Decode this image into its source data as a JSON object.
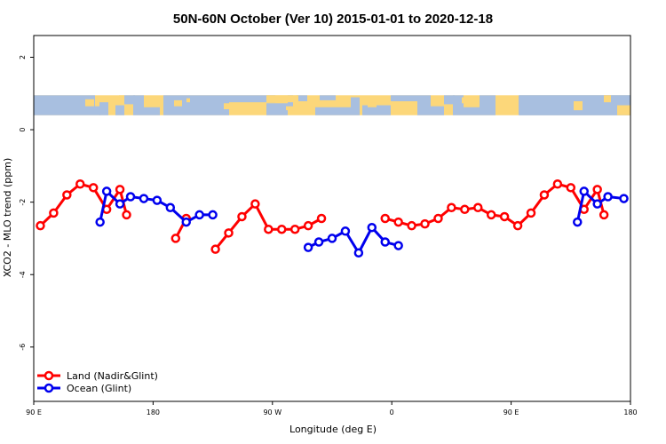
{
  "chart_data": {
    "type": "line",
    "title": "50N-60N October (Ver 10)   2015-01-01 to 2020-12-18",
    "xlabel": "Longitude (deg E)",
    "ylabel": "XCO2 - MLO trend (ppm)",
    "xlim": [
      90,
      540
    ],
    "ylim": [
      -7.5,
      2.6
    ],
    "x_ticks": [
      {
        "value": 90,
        "label": "90 E"
      },
      {
        "value": 180,
        "label": "180"
      },
      {
        "value": 270,
        "label": "90 W"
      },
      {
        "value": 360,
        "label": "0"
      },
      {
        "value": 450,
        "label": "90 E"
      },
      {
        "value": 540,
        "label": "180"
      }
    ],
    "y_ticks": [
      {
        "value": 2,
        "label": "2"
      },
      {
        "value": 0,
        "label": "0"
      },
      {
        "value": -2,
        "label": "-2"
      },
      {
        "value": -4,
        "label": "-4"
      },
      {
        "value": -6,
        "label": "-6"
      }
    ],
    "map_strip": {
      "y_top": 0.95,
      "y_bottom": 0.4,
      "ocean_color": "#a8bfe0",
      "land_color": "#fcd77a"
    },
    "legend_position": "bottom-left",
    "series": [
      {
        "name": "Land (Nadir&Glint)",
        "color": "#ff0000",
        "segments": [
          [
            [
              95,
              -2.65
            ],
            [
              105,
              -2.3
            ],
            [
              115,
              -1.8
            ],
            [
              125,
              -1.5
            ],
            [
              135,
              -1.6
            ],
            [
              145,
              -2.2
            ],
            [
              155,
              -1.65
            ],
            [
              160,
              -2.35
            ]
          ],
          [
            [
              197,
              -3.0
            ],
            [
              205,
              -2.45
            ]
          ],
          [
            [
              227,
              -3.3
            ],
            [
              237,
              -2.85
            ],
            [
              247,
              -2.4
            ],
            [
              257,
              -2.05
            ],
            [
              267,
              -2.75
            ],
            [
              277,
              -2.75
            ],
            [
              287,
              -2.75
            ],
            [
              297,
              -2.65
            ],
            [
              307,
              -2.45
            ]
          ],
          [
            [
              355,
              -2.45
            ],
            [
              365,
              -2.55
            ],
            [
              375,
              -2.65
            ],
            [
              385,
              -2.6
            ],
            [
              395,
              -2.45
            ],
            [
              405,
              -2.15
            ],
            [
              415,
              -2.2
            ],
            [
              425,
              -2.15
            ],
            [
              435,
              -2.35
            ],
            [
              445,
              -2.4
            ],
            [
              455,
              -2.65
            ],
            [
              465,
              -2.3
            ],
            [
              475,
              -1.8
            ],
            [
              485,
              -1.5
            ],
            [
              495,
              -1.6
            ],
            [
              505,
              -2.2
            ],
            [
              515,
              -1.65
            ],
            [
              520,
              -2.35
            ]
          ]
        ]
      },
      {
        "name": "Ocean (Glint)",
        "color": "#0000ee",
        "segments": [
          [
            [
              140,
              -2.55
            ],
            [
              145,
              -1.7
            ],
            [
              155,
              -2.05
            ],
            [
              163,
              -1.85
            ],
            [
              173,
              -1.9
            ],
            [
              183,
              -1.95
            ],
            [
              193,
              -2.15
            ],
            [
              205,
              -2.55
            ],
            [
              215,
              -2.35
            ],
            [
              225,
              -2.35
            ]
          ],
          [
            [
              297,
              -3.25
            ],
            [
              305,
              -3.1
            ],
            [
              315,
              -3.0
            ],
            [
              325,
              -2.8
            ],
            [
              335,
              -3.4
            ],
            [
              345,
              -2.7
            ],
            [
              355,
              -3.1
            ],
            [
              365,
              -3.2
            ]
          ],
          [
            [
              500,
              -2.55
            ],
            [
              505,
              -1.7
            ],
            [
              515,
              -2.05
            ],
            [
              523,
              -1.85
            ],
            [
              535,
              -1.9
            ]
          ]
        ]
      }
    ]
  }
}
